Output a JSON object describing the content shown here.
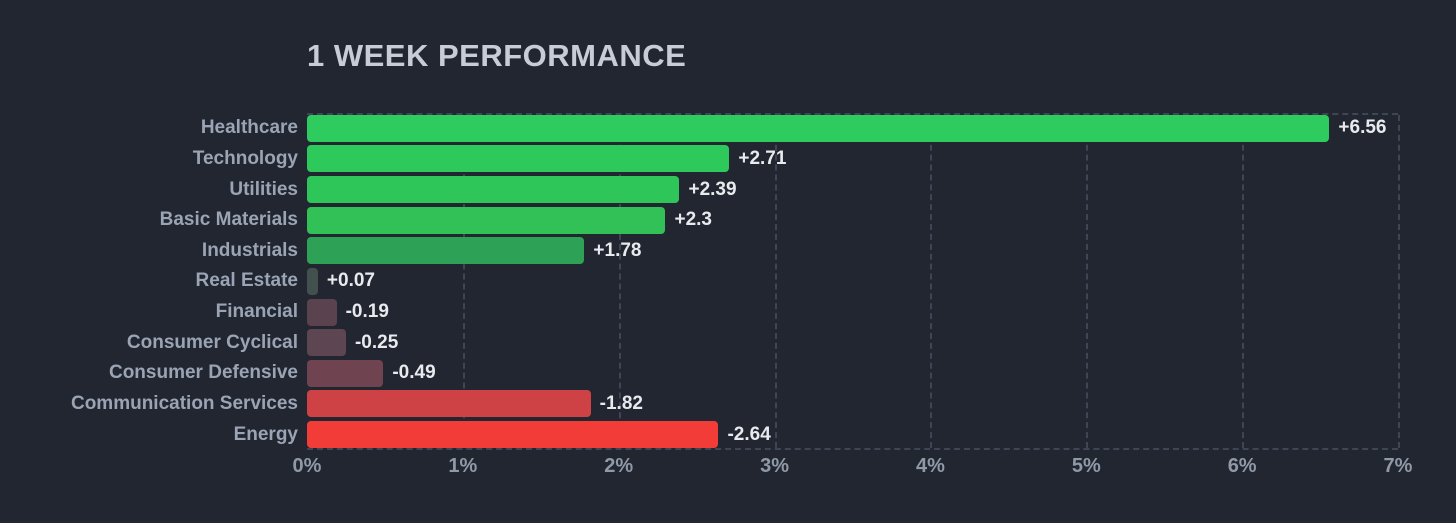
{
  "title": "1 WEEK PERFORMANCE",
  "colors": {
    "background": "#212630",
    "grid": "#3e4554",
    "title_text": "#c7ccd6",
    "category_text": "#9aa4b4",
    "value_text": "#e8eaee",
    "tick_text": "#9099a8"
  },
  "chart_data": {
    "type": "bar",
    "orientation": "horizontal",
    "title": "1 WEEK PERFORMANCE",
    "xlabel": "",
    "ylabel": "",
    "xlim": [
      0,
      7
    ],
    "x_ticks": [
      "0%",
      "1%",
      "2%",
      "3%",
      "4%",
      "5%",
      "6%",
      "7%"
    ],
    "grid": "dashed vertical gridlines at each 1%, dashed top and bottom plot borders",
    "legend": "none",
    "note": "bar length encodes absolute value of signed performance; color gradient green (positive) to red (negative)",
    "categories": [
      "Healthcare",
      "Technology",
      "Utilities",
      "Basic Materials",
      "Industrials",
      "Real Estate",
      "Financial",
      "Consumer Cyclical",
      "Consumer Defensive",
      "Communication Services",
      "Energy"
    ],
    "values": [
      6.56,
      2.71,
      2.39,
      2.3,
      1.78,
      0.07,
      -0.19,
      -0.25,
      -0.49,
      -1.82,
      -2.64
    ],
    "value_labels": [
      "+6.56",
      "+2.71",
      "+2.39",
      "+2.3",
      "+1.78",
      "+0.07",
      "-0.19",
      "-0.25",
      "-0.49",
      "-1.82",
      "-2.64"
    ],
    "bar_colors": [
      "#2ecc5e",
      "#2dc95b",
      "#2fc659",
      "#31c157",
      "#2da155",
      "#42514e",
      "#5a434f",
      "#5e4552",
      "#6f4350",
      "#ce4245",
      "#f23c37"
    ]
  }
}
